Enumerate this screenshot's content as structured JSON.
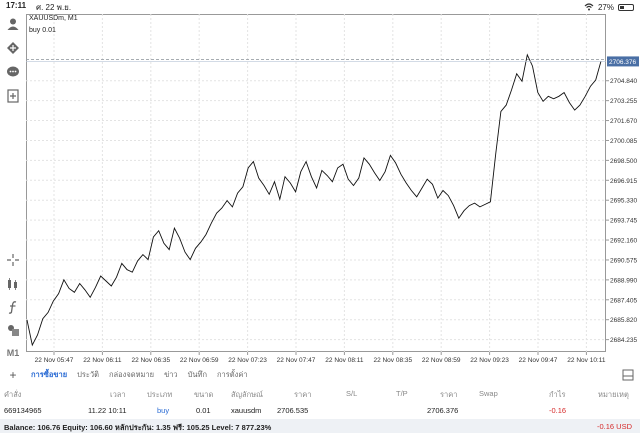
{
  "status_bar": {
    "time": "17:11",
    "date": "ศ. 22 พ.ย.",
    "battery": "27%"
  },
  "chart": {
    "symbol_title": "XAUUSDm, M1",
    "order_label": "buy 0.01",
    "current_price_label": "2706.376"
  },
  "left_toolbar": {
    "timeframe_label": "M1",
    "icons": [
      "account-icon",
      "trade-icon",
      "chat-icon",
      "new-chart-icon",
      "crosshair-icon",
      "indicators-icon",
      "function-icon",
      "objects-icon"
    ]
  },
  "tabs": {
    "add_label": "+",
    "items": [
      "การซื้อขาย",
      "ประวัติ",
      "กล่องจดหมาย",
      "ข่าว",
      "บันทึก",
      "การตั้งค่า"
    ],
    "active_index": 0
  },
  "table": {
    "headers": [
      "คำสั่ง",
      "เวลา",
      "ประเภท",
      "ขนาด",
      "สัญลักษณ์",
      "ราคา",
      "S/L",
      "T/P",
      "ราคา",
      "Swap",
      "กำไร",
      "หมายเหตุ"
    ],
    "row": {
      "order": "669134965",
      "time": "11.22 10:11",
      "type": "buy",
      "size": "0.01",
      "symbol": "xauusdm",
      "open_price": "2706.535",
      "current_price": "2706.376",
      "profit": "-0.16"
    }
  },
  "balance_bar": {
    "summary": "Balance: 106.76 Equity: 106.60 หลักประกัน: 1.35 ฟรี: 105.25 Level: 7 877.23%",
    "total": "-0.16  USD"
  },
  "chart_data": {
    "type": "line",
    "title": "XAUUSDm, M1",
    "xlabel": "",
    "ylabel": "",
    "ylim": [
      2683.25,
      2710.15
    ],
    "x_ticks": [
      "22 Nov 05:47",
      "22 Nov 06:11",
      "22 Nov 06:35",
      "22 Nov 06:59",
      "22 Nov 07:23",
      "22 Nov 07:47",
      "22 Nov 08:11",
      "22 Nov 08:35",
      "22 Nov 08:59",
      "22 Nov 09:23",
      "22 Nov 09:47",
      "22 Nov 10:11"
    ],
    "y_ticks": [
      2684.235,
      2685.82,
      2687.405,
      2688.99,
      2690.575,
      2692.16,
      2693.745,
      2695.33,
      2696.915,
      2698.5,
      2700.085,
      2701.67,
      2703.255,
      2704.84
    ],
    "current_price": 2706.376,
    "order_line_price": 2706.535,
    "series": [
      {
        "values": [
          2685.8,
          2683.8,
          2684.6,
          2685.9,
          2686.4,
          2687.3,
          2687.9,
          2689.0,
          2688.3,
          2688.0,
          2688.7,
          2688.2,
          2687.6,
          2688.4,
          2689.3,
          2688.9,
          2688.5,
          2689.2,
          2690.3,
          2689.8,
          2689.6,
          2690.5,
          2691.0,
          2690.6,
          2692.4,
          2692.9,
          2691.9,
          2691.4,
          2693.1,
          2692.3,
          2691.2,
          2690.6,
          2691.5,
          2692.0,
          2692.6,
          2693.5,
          2694.3,
          2694.7,
          2695.3,
          2694.8,
          2695.9,
          2696.4,
          2697.9,
          2698.4,
          2697.1,
          2696.5,
          2695.8,
          2696.8,
          2695.4,
          2697.2,
          2696.7,
          2696.0,
          2697.6,
          2698.4,
          2697.2,
          2696.3,
          2697.7,
          2697.3,
          2696.8,
          2697.9,
          2698.2,
          2697.0,
          2696.5,
          2697.1,
          2698.7,
          2698.2,
          2697.5,
          2696.9,
          2697.6,
          2698.9,
          2698.3,
          2697.4,
          2696.7,
          2696.1,
          2695.6,
          2696.3,
          2697.0,
          2696.6,
          2695.5,
          2696.1,
          2695.7,
          2694.9,
          2693.9,
          2694.5,
          2694.9,
          2695.1,
          2694.8,
          2695.0,
          2695.2,
          2699.0,
          2702.4,
          2702.9,
          2704.1,
          2705.4,
          2704.8,
          2706.9,
          2706.0,
          2703.9,
          2703.2,
          2703.6,
          2703.4,
          2703.6,
          2703.9,
          2703.1,
          2702.5,
          2702.9,
          2703.6,
          2704.4,
          2704.9,
          2706.4
        ]
      }
    ],
    "grid": true
  }
}
